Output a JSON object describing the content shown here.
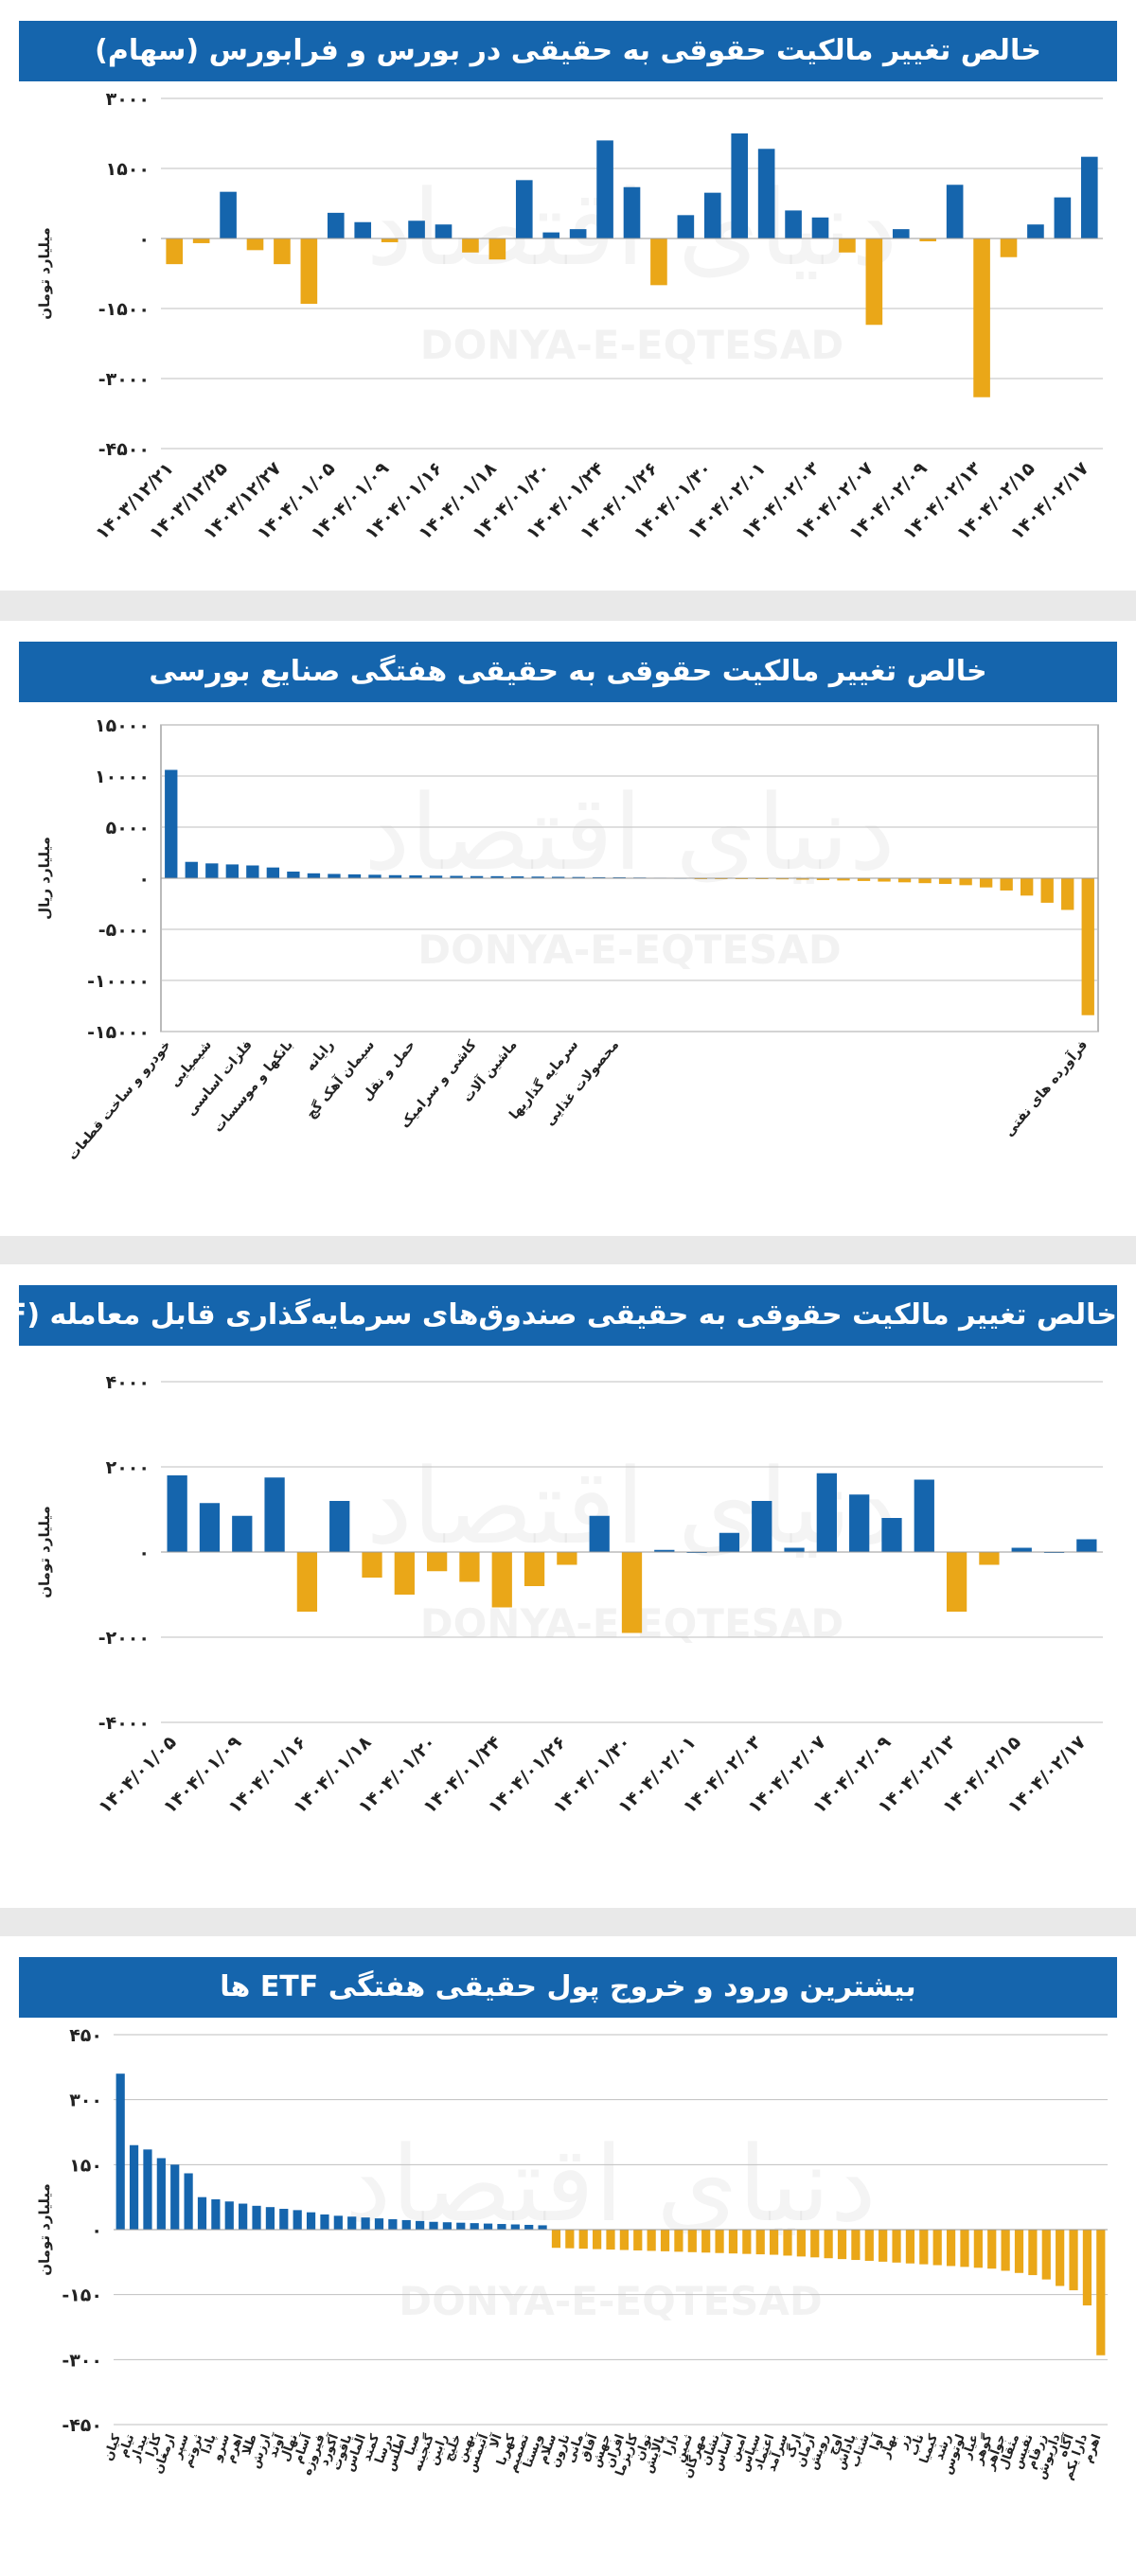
{
  "colors": {
    "positive": "#1565ad",
    "negative": "#eaa718",
    "title_bg": "#1565ad",
    "grid": "#bfbfbf"
  },
  "watermark": {
    "en": "DONYA-E-EQTESAD",
    "fa": "دنیای اقتصاد"
  },
  "chart_data": [
    {
      "id": "stocks",
      "type": "bar",
      "title": "خالص تغییر مالکیت حقوقی به حقیقی در بورس و فرابورس (سهام)",
      "ylabel": "میلیارد تومان",
      "xlabel": "",
      "ylim": [
        -4500,
        3000
      ],
      "yticks": [
        3000,
        1500,
        0,
        -1500,
        -3000,
        -4500
      ],
      "ytick_labels": [
        "۳۰۰۰",
        "۱۵۰۰",
        "۰",
        "-۱۵۰۰",
        "-۳۰۰۰",
        "-۴۵۰۰"
      ],
      "grid": "horizontal",
      "values": [
        -550,
        -100,
        1000,
        -250,
        -550,
        -1400,
        550,
        350,
        -80,
        380,
        300,
        -300,
        -450,
        1250,
        130,
        200,
        2100,
        1100,
        -1000,
        500,
        980,
        2250,
        1920,
        600,
        450,
        -300,
        -1850,
        200,
        -60,
        1150,
        -3400,
        -400,
        300,
        880,
        1750
      ],
      "categories": [
        "۱۴۰۳/۱۲/۲۱",
        "",
        "۱۴۰۳/۱۲/۲۵",
        "",
        "۱۴۰۳/۱۲/۲۷",
        "",
        "۱۴۰۴/۰۱/۰۵",
        "",
        "۱۴۰۴/۰۱/۰۹",
        "",
        "۱۴۰۴/۰۱/۱۶",
        "",
        "۱۴۰۴/۰۱/۱۸",
        "",
        "۱۴۰۴/۰۱/۲۰",
        "",
        "۱۴۰۴/۰۱/۲۴",
        "",
        "۱۴۰۴/۰۱/۲۶",
        "",
        "۱۴۰۴/۰۱/۳۰",
        "",
        "۱۴۰۴/۰۲/۰۱",
        "",
        "۱۴۰۴/۰۲/۰۳",
        "",
        "۱۴۰۴/۰۲/۰۷",
        "",
        "۱۴۰۴/۰۲/۰۹",
        "",
        "۱۴۰۴/۰۲/۱۳",
        "",
        "۱۴۰۴/۰۲/۱۵",
        "",
        "۱۴۰۴/۰۲/۱۷"
      ]
    },
    {
      "id": "industries",
      "type": "bar",
      "title": "خالص تغییر مالکیت حقوقی به حقیقی هفتگی صنایع بورسی",
      "ylabel": "میلیارد ریال",
      "xlabel": "",
      "ylim": [
        -15000,
        15000
      ],
      "yticks": [
        15000,
        10000,
        5000,
        0,
        -5000,
        -10000,
        -15000
      ],
      "ytick_labels": [
        "۱۵۰۰۰",
        "۱۰۰۰۰",
        "۵۰۰۰",
        "۰",
        "-۵۰۰۰",
        "-۱۰۰۰۰",
        "-۱۵۰۰۰"
      ],
      "grid": "box",
      "values": [
        10600,
        1600,
        1450,
        1350,
        1250,
        1050,
        650,
        480,
        420,
        380,
        340,
        300,
        280,
        250,
        230,
        210,
        200,
        180,
        160,
        140,
        120,
        100,
        90,
        70,
        50,
        40,
        -30,
        -50,
        -70,
        -90,
        -110,
        -140,
        -180,
        -220,
        -270,
        -330,
        -400,
        -480,
        -560,
        -680,
        -900,
        -1200,
        -1700,
        -2400,
        -3100,
        -13400
      ],
      "categories": [
        "خودرو و ساخت قطعات",
        "",
        "شیمیایی",
        "",
        "فلزات اساسی",
        "",
        "بانکها و موسسات",
        "",
        "رایانه",
        "",
        "سیمان آهک گچ",
        "",
        "حمل و نقل",
        "",
        "",
        "کاشی و سرامیک",
        "",
        "ماشین آلات",
        "",
        "",
        "سرمایه گذاریها",
        "",
        "محصولات غذایی",
        "",
        "",
        "",
        "",
        "",
        "",
        "",
        "",
        "",
        "",
        "",
        "",
        "",
        "",
        "",
        "",
        "",
        "",
        "",
        "",
        "",
        "",
        "فرآورده های نفتی"
      ]
    },
    {
      "id": "etf",
      "type": "bar",
      "title": "خالص تغییر مالکیت حقوقی به حقیقی صندوق‌های سرمایه‌گذاری قابل معامله (ETF)",
      "ylabel": "میلیارد تومان",
      "xlabel": "",
      "ylim": [
        -4000,
        4000
      ],
      "yticks": [
        4000,
        2000,
        0,
        -2000,
        -4000
      ],
      "ytick_labels": [
        "۴۰۰۰",
        "۲۰۰۰",
        "۰",
        "-۲۰۰۰",
        "-۴۰۰۰"
      ],
      "grid": "horizontal",
      "values": [
        1800,
        1150,
        850,
        1750,
        -1400,
        1200,
        -600,
        -1000,
        -450,
        -700,
        -1300,
        -800,
        -300,
        850,
        -1900,
        50,
        0,
        450,
        1200,
        100,
        1850,
        1350,
        800,
        1700,
        -1400,
        -300,
        100,
        0,
        300
      ],
      "categories": [
        "۱۴۰۴/۰۱/۰۵",
        "",
        "۱۴۰۴/۰۱/۰۹",
        "",
        "۱۴۰۴/۰۱/۱۶",
        "",
        "۱۴۰۴/۰۱/۱۸",
        "",
        "۱۴۰۴/۰۱/۲۰",
        "",
        "۱۴۰۴/۰۱/۲۴",
        "",
        "۱۴۰۴/۰۱/۲۶",
        "",
        "۱۴۰۴/۰۱/۳۰",
        "",
        "۱۴۰۴/۰۲/۰۱",
        "",
        "۱۴۰۴/۰۲/۰۳",
        "",
        "۱۴۰۴/۰۲/۰۷",
        "",
        "۱۴۰۴/۰۲/۰۹",
        "",
        "۱۴۰۴/۰۲/۱۳",
        "",
        "۱۴۰۴/۰۲/۱۵",
        "",
        "۱۴۰۴/۰۲/۱۷"
      ]
    },
    {
      "id": "top_etf",
      "type": "bar",
      "title": "بیشترین ورود و خروج پول حقیقی هفتگی ETF ها",
      "ylabel": "میلیارد تومان",
      "xlabel": "",
      "ylim": [
        -450,
        450
      ],
      "yticks": [
        450,
        300,
        150,
        0,
        -150,
        -300,
        -450
      ],
      "ytick_labels": [
        "۴۵۰",
        "۳۰۰",
        "۱۵۰",
        "۰",
        "-۱۵۰",
        "-۳۰۰",
        "-۴۵۰"
      ],
      "grid": "horizontal",
      "values": [
        360,
        195,
        185,
        165,
        150,
        130,
        75,
        70,
        65,
        60,
        55,
        52,
        48,
        45,
        40,
        35,
        32,
        30,
        28,
        26,
        24,
        22,
        20,
        18,
        17,
        16,
        15,
        14,
        13,
        12,
        11,
        10,
        -42,
        -43,
        -44,
        -45,
        -46,
        -47,
        -48,
        -49,
        -50,
        -51,
        -52,
        -53,
        -54,
        -55,
        -56,
        -57,
        -58,
        -60,
        -62,
        -64,
        -66,
        -68,
        -70,
        -72,
        -74,
        -76,
        -78,
        -80,
        -82,
        -84,
        -86,
        -88,
        -90,
        -95,
        -100,
        -105,
        -115,
        -130,
        -140,
        -175,
        -290
      ],
      "categories": [
        "کیان",
        "تیام",
        "بیدار",
        "کارا",
        "ارمغان",
        "سپر",
        "ثروتم",
        "پادا",
        "سرو",
        "اهرم",
        "طلا",
        "ارزش",
        "آوند",
        "نهال",
        "آسام",
        "فیروزه",
        "آکورد",
        "یاقوت",
        "الماس",
        "کمند",
        "درسا",
        "اطلس",
        "صبا",
        "گنجینه",
        "رابین",
        "خلیج",
        "بهین",
        "آتیمس",
        "آلا",
        "کهربا",
        "تصمیم",
        "ویستا",
        "سلام",
        "نارون",
        "مانی",
        "آفاق",
        "جهش",
        "افران",
        "کاریزما",
        "توان",
        "پالایش",
        "دارا",
        "ثمین",
        "مهرگان",
        "نشان",
        "آساس",
        "امین",
        "سپاس",
        "اعتماد",
        "سرآمد",
        "ارگ",
        "آرمان",
        "رویش",
        "اوج",
        "پاداش",
        "شتاب",
        "آوا",
        "بهار",
        "زر",
        "ناب",
        "کیمیا",
        "رشد",
        "لوتوس",
        "عیار",
        "گوهر",
        "جواهر",
        "مثقال",
        "نفیس",
        "زرفام",
        "داریوش",
        "آگاه",
        "دارا یکم",
        "اهرم"
      ]
    }
  ]
}
